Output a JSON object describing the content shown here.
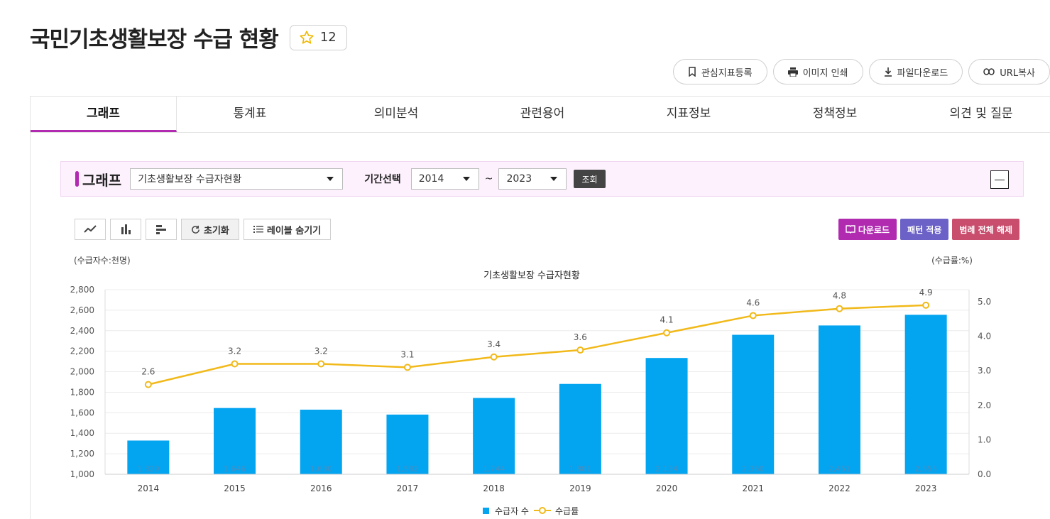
{
  "page": {
    "title": "국민기초생활보장 수급 현황",
    "favorite_count": "12"
  },
  "actions": [
    {
      "label": "관심지표등록",
      "icon": "bookmark-icon"
    },
    {
      "label": "이미지 인쇄",
      "icon": "printer-icon"
    },
    {
      "label": "파일다운로드",
      "icon": "download-icon"
    },
    {
      "label": "URL복사",
      "icon": "link-icon"
    }
  ],
  "tabs": [
    {
      "label": "그래프",
      "active": true
    },
    {
      "label": "통계표"
    },
    {
      "label": "의미분석"
    },
    {
      "label": "관련용어"
    },
    {
      "label": "지표정보"
    },
    {
      "label": "정책정보"
    },
    {
      "label": "의견 및 질문"
    }
  ],
  "filter": {
    "title": "그래프",
    "dataset": "기초생활보장 수급자현황",
    "period_label": "기간선택",
    "start_year": "2014",
    "end_year": "2023",
    "tilde": "~",
    "query_label": "조회"
  },
  "toolbar": {
    "reset_label": "초기화",
    "hide_labels_label": "레이블 숨기기",
    "download_label": "다운로드",
    "pattern_label": "패턴 적용",
    "legend_clear_label": "범례 전체 해제"
  },
  "colors": {
    "accent": "#b12bb1",
    "bar": "#03a4f0",
    "line": "#f1b919",
    "download_btn": "#b12bb1",
    "pattern_btn": "#6b61c7",
    "legend_btn": "#c94d6d"
  },
  "chart_data": {
    "type": "bar",
    "title": "기초생활보장 수급자현황",
    "left_unit": "(수급자수:천명)",
    "right_unit": "(수급률:%)",
    "categories": [
      "2014",
      "2015",
      "2016",
      "2017",
      "2018",
      "2019",
      "2020",
      "2021",
      "2022",
      "2023"
    ],
    "y_left": {
      "min": 1000,
      "max": 2800,
      "ticks": [
        "1,000",
        "1,200",
        "1,400",
        "1,600",
        "1,800",
        "2,000",
        "2,200",
        "2,400",
        "2,600",
        "2,800"
      ]
    },
    "y_right": {
      "min": 0,
      "max": 5.0,
      "ticks": [
        "0.0",
        "1.0",
        "2.0",
        "3.0",
        "4.0",
        "5.0"
      ]
    },
    "grid": true,
    "legend_position": "bottom",
    "series": [
      {
        "name": "수급자 수",
        "type": "bar",
        "axis": "left",
        "values": [
          1329,
          1646,
          1630,
          1582,
          1744,
          1881,
          2134,
          2360,
          2451,
          2555
        ],
        "labels": [
          "1,329",
          "1,646",
          "1,630",
          "1,582",
          "1,744",
          "1,881",
          "2,134",
          "2,360",
          "2,451",
          "2,555"
        ]
      },
      {
        "name": "수급률",
        "type": "line",
        "axis": "right",
        "values": [
          2.6,
          3.2,
          3.2,
          3.1,
          3.4,
          3.6,
          4.1,
          4.6,
          4.8,
          4.9
        ],
        "labels": [
          "2.6",
          "3.2",
          "3.2",
          "3.1",
          "3.4",
          "3.6",
          "4.1",
          "4.6",
          "4.8",
          "4.9"
        ]
      }
    ]
  }
}
